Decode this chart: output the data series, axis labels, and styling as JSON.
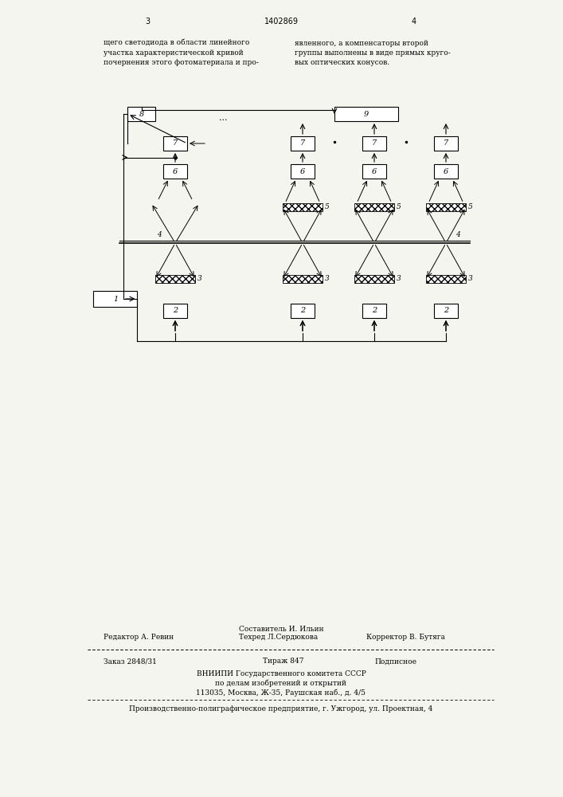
{
  "bg_color": "#f5f5f0",
  "page_width": 7.07,
  "page_height": 10.0,
  "header_text_left": "щего светодиода в области линейного\nучастка характеристической кривой\nпочернения этого фотоматериала и про-",
  "header_text_right": "явленного, а компенсаторы второй ·\nгруппы выполнены в виде прямых круго-\nвых оптических конусов.",
  "page_num_left": "3",
  "page_num_center": "1402869",
  "page_num_right": "4",
  "footer_editor": "Редактор А. Ревин",
  "footer_composer": "Составитель И. Ильин",
  "footer_techred": "Техред Л.Сердюкова",
  "footer_corrector": "Корректор В. Бутяга",
  "footer_order": "Заказ 2848/31",
  "footer_tirazh": "Тираж 847",
  "footer_podpisnoe": "Подписное",
  "footer_vnipi": "ВНИИПИ Государственного комитета СССР",
  "footer_po_delam": "по делам изобретений и открытий",
  "footer_address": "113035, Москва, Ж-35, Раушская наб., д. 4/5",
  "footer_polygraph": "Производственно-полиграфическое предприятие, г. Ужгород, ул. Проектная, 4"
}
